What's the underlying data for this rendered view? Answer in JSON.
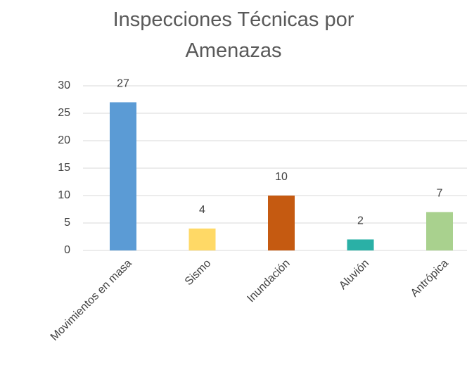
{
  "chart_data": {
    "type": "bar",
    "title": "Inspecciones Técnicas por Amenazas",
    "categories": [
      "Movimientos en masa",
      "Sismo",
      "Inundación",
      "Aluvión",
      "Antrópica"
    ],
    "values": [
      27,
      4,
      10,
      2,
      7
    ],
    "colors": [
      "#5b9bd5",
      "#ffd966",
      "#c55a11",
      "#2ab0a6",
      "#a9d18e"
    ],
    "ylim": [
      0,
      30
    ],
    "yticks": [
      0,
      5,
      10,
      15,
      20,
      25,
      30
    ],
    "grid": true
  }
}
